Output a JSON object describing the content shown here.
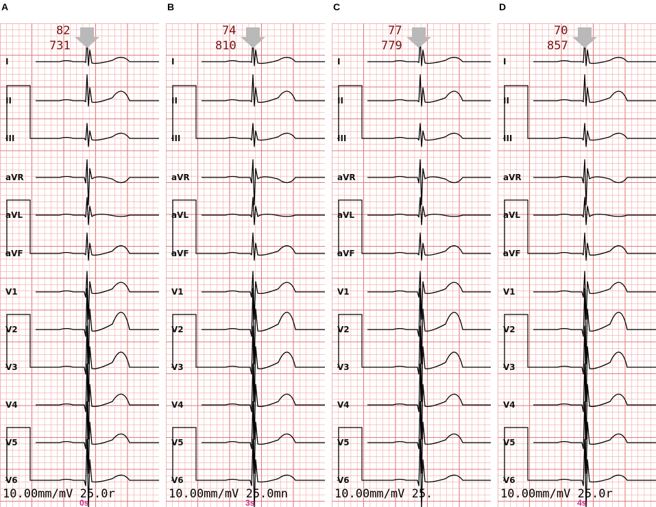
{
  "panels": [
    {
      "letter": "A",
      "rate": "82",
      "interval": "731",
      "scale": "10.00mm/mV 25.0r",
      "time_mark": "0s"
    },
    {
      "letter": "B",
      "rate": "74",
      "interval": "810",
      "scale": "10.00mm/mV 25.0mn",
      "time_mark": "3s"
    },
    {
      "letter": "C",
      "rate": "77",
      "interval": "779",
      "scale": "10.00mm/mV 25.",
      "time_mark": ""
    },
    {
      "letter": "D",
      "rate": "70",
      "interval": "857",
      "scale": "10.00mm/mV 25.0r",
      "time_mark": "4s"
    }
  ],
  "leads": [
    "I",
    "II",
    "III",
    "aVR",
    "aVL",
    "aVF",
    "V1",
    "V2",
    "V3",
    "V4",
    "V5",
    "V6"
  ],
  "colors": {
    "grid_fine": "#f2a8a8",
    "grid_bold": "#e07a7a",
    "trace": "#000000",
    "rate_text": "#7a1010",
    "time_mark": "#cc2a88",
    "arrow": "#b9b9b9"
  },
  "icons": {
    "marker": "down-arrow-icon"
  }
}
